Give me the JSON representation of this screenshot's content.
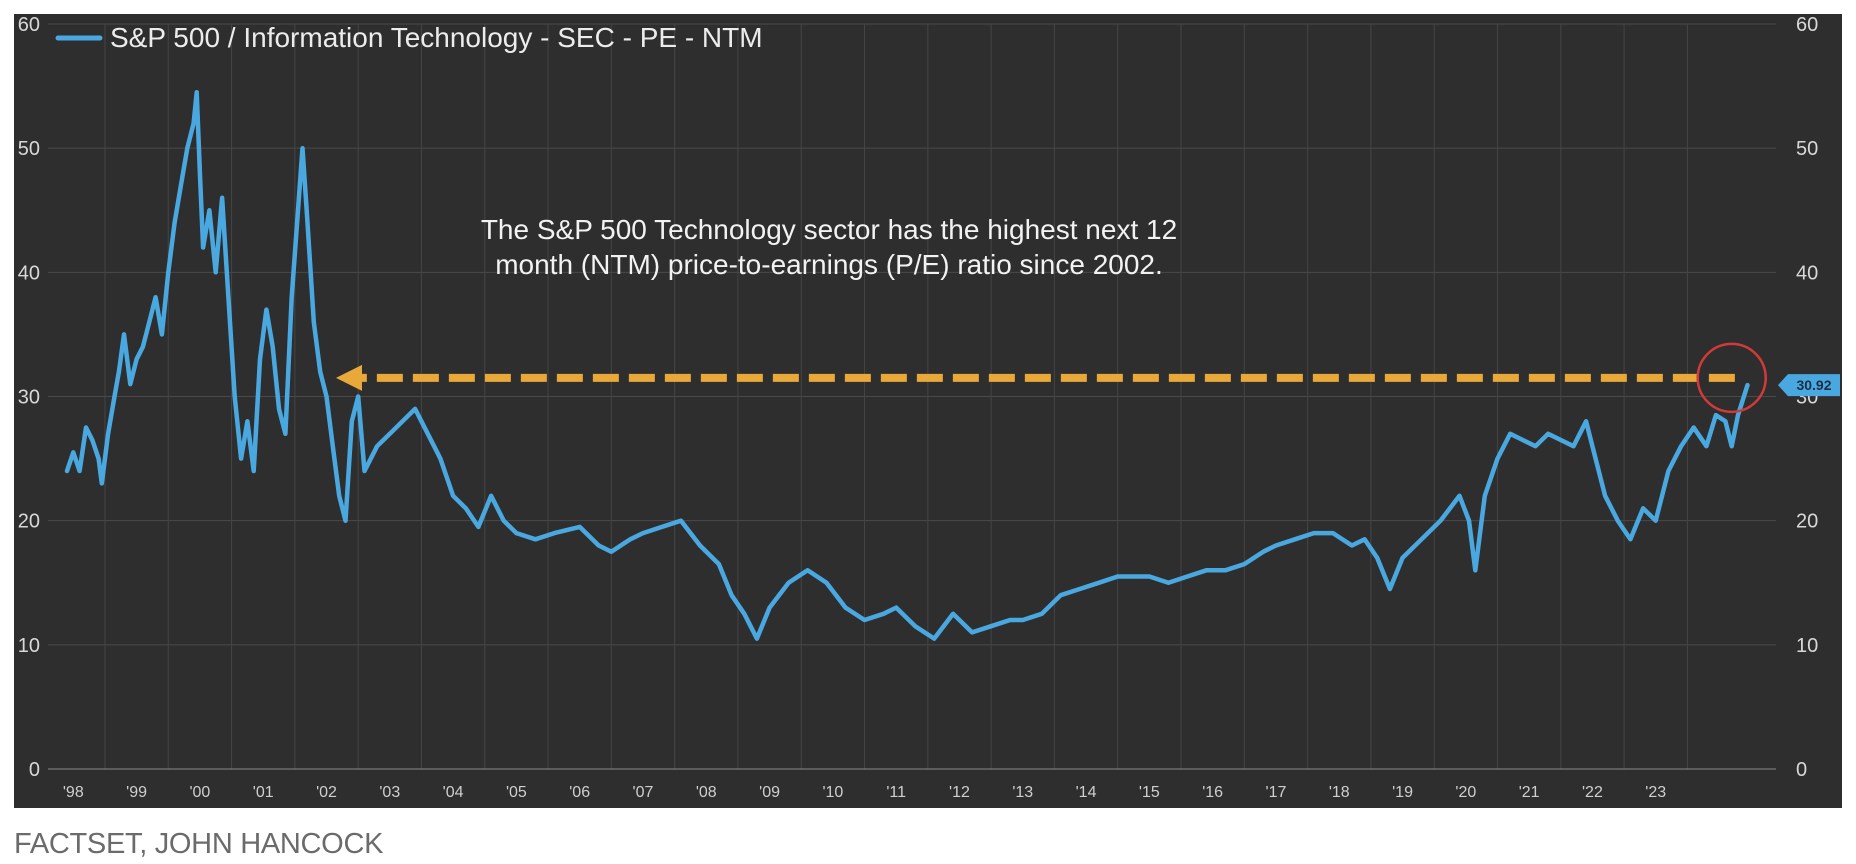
{
  "chart_data": {
    "type": "line",
    "legend": {
      "label": "S&P 500 / Information Technology - SEC - PE - NTM",
      "placement": "top-left"
    },
    "series": [
      {
        "name": "S&P 500 / Information Technology - SEC - PE - NTM",
        "color": "#4aa8e0",
        "points": [
          [
            1997.9,
            24
          ],
          [
            1998.0,
            25.5
          ],
          [
            1998.1,
            24
          ],
          [
            1998.2,
            27.5
          ],
          [
            1998.3,
            26.5
          ],
          [
            1998.4,
            25
          ],
          [
            1998.45,
            23
          ],
          [
            1998.55,
            27
          ],
          [
            1998.65,
            30
          ],
          [
            1998.72,
            32
          ],
          [
            1998.8,
            35
          ],
          [
            1998.9,
            31
          ],
          [
            1999.0,
            33
          ],
          [
            1999.1,
            34
          ],
          [
            1999.2,
            36
          ],
          [
            1999.3,
            38
          ],
          [
            1999.4,
            35
          ],
          [
            1999.5,
            40
          ],
          [
            1999.6,
            44
          ],
          [
            1999.7,
            47
          ],
          [
            1999.8,
            50
          ],
          [
            1999.9,
            52
          ],
          [
            1999.95,
            54.5
          ],
          [
            2000.0,
            48
          ],
          [
            2000.05,
            42
          ],
          [
            2000.15,
            45
          ],
          [
            2000.25,
            40
          ],
          [
            2000.35,
            46
          ],
          [
            2000.45,
            38
          ],
          [
            2000.55,
            30
          ],
          [
            2000.65,
            25
          ],
          [
            2000.75,
            28
          ],
          [
            2000.85,
            24
          ],
          [
            2000.95,
            33
          ],
          [
            2001.05,
            37
          ],
          [
            2001.15,
            34
          ],
          [
            2001.25,
            29
          ],
          [
            2001.35,
            27
          ],
          [
            2001.45,
            38
          ],
          [
            2001.55,
            45
          ],
          [
            2001.62,
            50
          ],
          [
            2001.7,
            44
          ],
          [
            2001.8,
            36
          ],
          [
            2001.9,
            32
          ],
          [
            2002.0,
            30
          ],
          [
            2002.1,
            26
          ],
          [
            2002.2,
            22
          ],
          [
            2002.3,
            20
          ],
          [
            2002.4,
            28
          ],
          [
            2002.5,
            30
          ],
          [
            2002.6,
            24
          ],
          [
            2002.8,
            26
          ],
          [
            2003.0,
            27
          ],
          [
            2003.2,
            28
          ],
          [
            2003.4,
            29
          ],
          [
            2003.6,
            27
          ],
          [
            2003.8,
            25
          ],
          [
            2004.0,
            22
          ],
          [
            2004.2,
            21
          ],
          [
            2004.4,
            19.5
          ],
          [
            2004.6,
            22
          ],
          [
            2004.8,
            20
          ],
          [
            2005.0,
            19
          ],
          [
            2005.3,
            18.5
          ],
          [
            2005.6,
            19
          ],
          [
            2006.0,
            19.5
          ],
          [
            2006.3,
            18
          ],
          [
            2006.5,
            17.5
          ],
          [
            2006.8,
            18.5
          ],
          [
            2007.0,
            19
          ],
          [
            2007.3,
            19.5
          ],
          [
            2007.6,
            20
          ],
          [
            2007.9,
            18
          ],
          [
            2008.2,
            16.5
          ],
          [
            2008.4,
            14
          ],
          [
            2008.6,
            12.5
          ],
          [
            2008.8,
            10.5
          ],
          [
            2009.0,
            13
          ],
          [
            2009.3,
            15
          ],
          [
            2009.6,
            16
          ],
          [
            2009.9,
            15
          ],
          [
            2010.2,
            13
          ],
          [
            2010.5,
            12
          ],
          [
            2010.8,
            12.5
          ],
          [
            2011.0,
            13
          ],
          [
            2011.3,
            11.5
          ],
          [
            2011.6,
            10.5
          ],
          [
            2011.9,
            12.5
          ],
          [
            2012.2,
            11
          ],
          [
            2012.5,
            11.5
          ],
          [
            2012.8,
            12
          ],
          [
            2013.0,
            12
          ],
          [
            2013.3,
            12.5
          ],
          [
            2013.6,
            14
          ],
          [
            2013.9,
            14.5
          ],
          [
            2014.2,
            15
          ],
          [
            2014.5,
            15.5
          ],
          [
            2014.8,
            15.5
          ],
          [
            2015.0,
            15.5
          ],
          [
            2015.3,
            15
          ],
          [
            2015.6,
            15.5
          ],
          [
            2015.9,
            16
          ],
          [
            2016.2,
            16
          ],
          [
            2016.5,
            16.5
          ],
          [
            2016.8,
            17.5
          ],
          [
            2017.0,
            18
          ],
          [
            2017.3,
            18.5
          ],
          [
            2017.6,
            19
          ],
          [
            2017.9,
            19
          ],
          [
            2018.2,
            18
          ],
          [
            2018.4,
            18.5
          ],
          [
            2018.6,
            17
          ],
          [
            2018.8,
            14.5
          ],
          [
            2019.0,
            17
          ],
          [
            2019.3,
            18.5
          ],
          [
            2019.6,
            20
          ],
          [
            2019.9,
            22
          ],
          [
            2020.05,
            20
          ],
          [
            2020.15,
            16
          ],
          [
            2020.3,
            22
          ],
          [
            2020.5,
            25
          ],
          [
            2020.7,
            27
          ],
          [
            2020.9,
            26.5
          ],
          [
            2021.1,
            26
          ],
          [
            2021.3,
            27
          ],
          [
            2021.5,
            26.5
          ],
          [
            2021.7,
            26
          ],
          [
            2021.9,
            28
          ],
          [
            2022.0,
            26
          ],
          [
            2022.2,
            22
          ],
          [
            2022.4,
            20
          ],
          [
            2022.6,
            18.5
          ],
          [
            2022.8,
            21
          ],
          [
            2023.0,
            20
          ],
          [
            2023.2,
            24
          ],
          [
            2023.4,
            26
          ],
          [
            2023.6,
            27.5
          ],
          [
            2023.8,
            26
          ],
          [
            2023.95,
            28.5
          ],
          [
            2024.1,
            28
          ],
          [
            2024.2,
            26
          ],
          [
            2024.3,
            28.5
          ],
          [
            2024.45,
            30.92
          ]
        ]
      }
    ],
    "x_axis": {
      "ticks": [
        {
          "value": 1998,
          "label": "'98"
        },
        {
          "value": 1999,
          "label": "'99"
        },
        {
          "value": 2000,
          "label": "'00"
        },
        {
          "value": 2001,
          "label": "'01"
        },
        {
          "value": 2002,
          "label": "'02"
        },
        {
          "value": 2003,
          "label": "'03"
        },
        {
          "value": 2004,
          "label": "'04"
        },
        {
          "value": 2005,
          "label": "'05"
        },
        {
          "value": 2006,
          "label": "'06"
        },
        {
          "value": 2007,
          "label": "'07"
        },
        {
          "value": 2008,
          "label": "'08"
        },
        {
          "value": 2009,
          "label": "'09"
        },
        {
          "value": 2010,
          "label": "'10"
        },
        {
          "value": 2011,
          "label": "'11"
        },
        {
          "value": 2012,
          "label": "'12"
        },
        {
          "value": 2013,
          "label": "'13"
        },
        {
          "value": 2014,
          "label": "'14"
        },
        {
          "value": 2015,
          "label": "'15"
        },
        {
          "value": 2016,
          "label": "'16"
        },
        {
          "value": 2017,
          "label": "'17"
        },
        {
          "value": 2018,
          "label": "'18"
        },
        {
          "value": 2019,
          "label": "'19"
        },
        {
          "value": 2020,
          "label": "'20"
        },
        {
          "value": 2021,
          "label": "'21"
        },
        {
          "value": 2022,
          "label": "'22"
        },
        {
          "value": 2023,
          "label": "'23"
        }
      ],
      "range": [
        1997.6,
        2024.9
      ]
    },
    "y_axis": {
      "range": [
        0,
        60
      ],
      "ticks": [
        0,
        10,
        20,
        30,
        40,
        50,
        60
      ],
      "tick_labels": [
        "0",
        "10",
        "20",
        "30",
        "40",
        "50",
        "60"
      ],
      "sides": "left and right"
    },
    "grid": true,
    "last_value_badge": {
      "label": "30.92",
      "value": 30.92,
      "color": "#4aa8e0"
    },
    "annotation": {
      "lines": [
        "The S&P 500 Technology sector has the highest next 12",
        "month (NTM) price-to-earnings (P/E) ratio since 2002."
      ],
      "arrow": {
        "from": {
          "x": 2024.25,
          "y": 31.5
        },
        "to": {
          "x": 2002.15,
          "y": 31.5
        },
        "color": "#e8a93a",
        "style": "dashed"
      },
      "highlight_circle": {
        "x": 2024.2,
        "y": 31.5,
        "color": "#d13a3a"
      }
    }
  },
  "source": "FACTSET, JOHN HANCOCK"
}
